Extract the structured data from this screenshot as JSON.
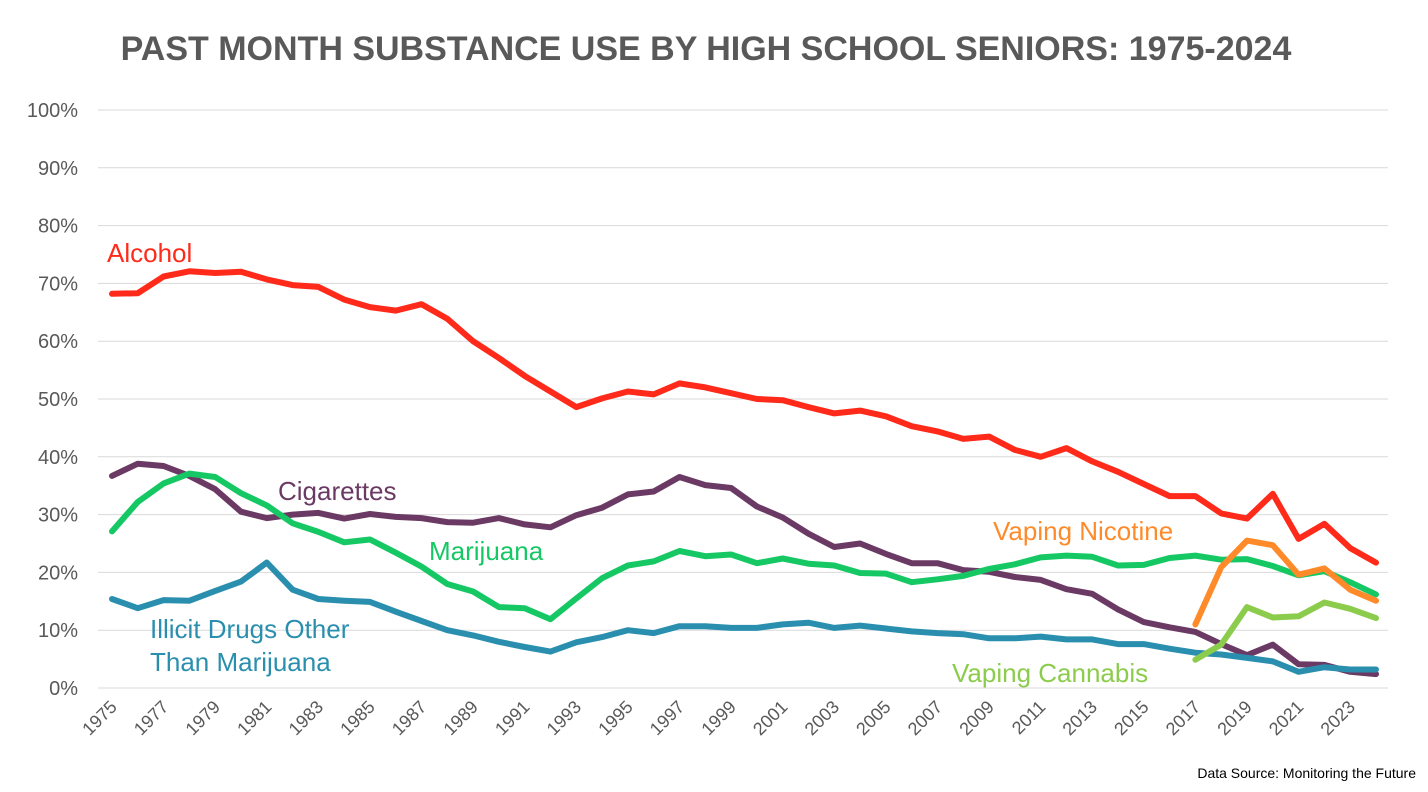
{
  "chart_data": {
    "type": "line",
    "title": "PAST MONTH SUBSTANCE USE BY HIGH SCHOOL SENIORS: 1975-2024",
    "source": "Data Source: Monitoring the Future",
    "xlabel": "",
    "ylabel": "",
    "ylim": [
      0,
      100
    ],
    "yticks": [
      "0%",
      "10%",
      "20%",
      "30%",
      "40%",
      "50%",
      "60%",
      "70%",
      "80%",
      "90%",
      "100%"
    ],
    "xticks": [
      "1975",
      "1977",
      "1979",
      "1981",
      "1983",
      "1985",
      "1987",
      "1989",
      "1991",
      "1993",
      "1995",
      "1997",
      "1999",
      "2001",
      "2003",
      "2005",
      "2007",
      "2009",
      "2011",
      "2013",
      "2015",
      "2017",
      "2019",
      "2021",
      "2023"
    ],
    "grid": true,
    "series": [
      {
        "name": "Alcohol",
        "label": "Alcohol",
        "color": "#ff2a1a",
        "x_start": 1975,
        "values": [
          68.2,
          68.3,
          71.2,
          72.1,
          71.8,
          72.0,
          70.7,
          69.7,
          69.4,
          67.2,
          65.9,
          65.3,
          66.4,
          63.9,
          60.0,
          57.1,
          54.0,
          51.3,
          48.6,
          50.1,
          51.3,
          50.8,
          52.7,
          52.0,
          51.0,
          50.0,
          49.8,
          48.6,
          47.5,
          48.0,
          47.0,
          45.3,
          44.4,
          43.1,
          43.5,
          41.2,
          40.0,
          41.5,
          39.2,
          37.4,
          35.3,
          33.2,
          33.2,
          30.2,
          29.3,
          33.6,
          25.8,
          28.4,
          24.2,
          21.7
        ]
      },
      {
        "name": "Cigarettes",
        "label": "Cigarettes",
        "color": "#6b3a64",
        "x_start": 1975,
        "values": [
          36.7,
          38.8,
          38.4,
          36.7,
          34.4,
          30.5,
          29.4,
          30.0,
          30.3,
          29.3,
          30.1,
          29.6,
          29.4,
          28.7,
          28.6,
          29.4,
          28.3,
          27.8,
          29.9,
          31.2,
          33.5,
          34.0,
          36.5,
          35.1,
          34.6,
          31.4,
          29.5,
          26.7,
          24.4,
          25.0,
          23.2,
          21.6,
          21.6,
          20.4,
          20.1,
          19.2,
          18.7,
          17.1,
          16.3,
          13.6,
          11.4,
          10.5,
          9.7,
          7.6,
          5.7,
          7.5,
          4.1,
          4.0,
          2.8,
          2.4
        ]
      },
      {
        "name": "Marijuana",
        "label": "Marijuana",
        "color": "#16c864",
        "x_start": 1975,
        "values": [
          27.1,
          32.2,
          35.4,
          37.1,
          36.5,
          33.7,
          31.6,
          28.5,
          27.0,
          25.2,
          25.7,
          23.4,
          21.0,
          18.0,
          16.7,
          14.0,
          13.8,
          11.9,
          15.5,
          19.0,
          21.2,
          21.9,
          23.7,
          22.8,
          23.1,
          21.6,
          22.4,
          21.5,
          21.2,
          19.9,
          19.8,
          18.3,
          18.8,
          19.4,
          20.6,
          21.4,
          22.6,
          22.9,
          22.7,
          21.2,
          21.3,
          22.5,
          22.9,
          22.2,
          22.3,
          21.1,
          19.5,
          20.2,
          18.3,
          16.2
        ]
      },
      {
        "name": "Illicit Drugs Other Than Marijuana",
        "label_lines": [
          "Illicit Drugs Other",
          "Than Marijuana"
        ],
        "color": "#2a8fae",
        "x_start": 1975,
        "values": [
          15.4,
          13.8,
          15.2,
          15.1,
          16.8,
          18.4,
          21.7,
          17.0,
          15.4,
          15.1,
          14.9,
          13.2,
          11.6,
          10.0,
          9.1,
          8.0,
          7.1,
          6.3,
          7.9,
          8.8,
          10.0,
          9.5,
          10.7,
          10.7,
          10.4,
          10.4,
          11.0,
          11.3,
          10.4,
          10.8,
          10.3,
          9.8,
          9.5,
          9.3,
          8.6,
          8.6,
          8.9,
          8.4,
          8.4,
          7.6,
          7.6,
          6.8,
          6.1,
          5.8,
          5.2,
          4.6,
          2.8,
          3.6,
          3.2,
          3.2
        ]
      },
      {
        "name": "Vaping Nicotine",
        "label": "Vaping Nicotine",
        "color": "#ff8a2a",
        "x_start": 2017,
        "values": [
          11.0,
          20.9,
          25.5,
          24.7,
          19.6,
          20.7,
          17.0,
          15.1
        ]
      },
      {
        "name": "Vaping Cannabis",
        "label": "Vaping Cannabis",
        "color": "#8ccc4c",
        "x_start": 2017,
        "values": [
          4.9,
          7.5,
          14.0,
          12.2,
          12.4,
          14.8,
          13.7,
          12.1
        ]
      }
    ]
  }
}
